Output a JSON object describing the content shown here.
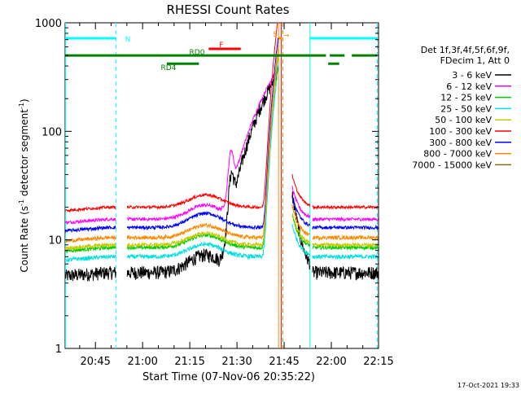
{
  "chart_data": {
    "type": "line",
    "title": "RHESSI Count Rates",
    "xlabel": "Start Time (07-Nov-06 20:35:22)",
    "ylabel_main": "Count Rate (s",
    "ylabel_sup": "-1",
    "ylabel_tail": " detector segment",
    "ylabel_sup2": "-1",
    "ylabel_end": ")",
    "yscale": "log",
    "ylim": [
      1,
      1000
    ],
    "xlim_min": [
      35.37,
      135.0
    ],
    "yticks": [
      {
        "v": 1,
        "label": "1"
      },
      {
        "v": 10,
        "label": "10"
      },
      {
        "v": 100,
        "label": "100"
      },
      {
        "v": 1000,
        "label": "1000"
      }
    ],
    "xticks": [
      {
        "v": 45,
        "label": "20:45"
      },
      {
        "v": 60,
        "label": "21:00"
      },
      {
        "v": 75,
        "label": "21:15"
      },
      {
        "v": 90,
        "label": "21:30"
      },
      {
        "v": 105,
        "label": "21:45"
      },
      {
        "v": 120,
        "label": "22:00"
      },
      {
        "v": 135,
        "label": "22:15"
      }
    ],
    "legend": {
      "header1": "Det 1f,3f,4f,5f,6f,9f,",
      "header2": "FDecim 1, Att 0",
      "placement": "right"
    },
    "series": [
      {
        "name": "3 - 6 keV",
        "color": "#000000",
        "base": 5.0,
        "bump": 1.45,
        "noise": 0.09
      },
      {
        "name": "6 - 12 keV",
        "color": "#ff00ff",
        "base": 15.5,
        "bump": 1.35,
        "noise": 0.035
      },
      {
        "name": "12 - 25 keV",
        "color": "#00cc00",
        "base": 8.5,
        "bump": 1.3,
        "noise": 0.04
      },
      {
        "name": "25 - 50 keV",
        "color": "#00e0e0",
        "base": 7.0,
        "bump": 1.3,
        "noise": 0.045
      },
      {
        "name": "50 - 100 keV",
        "color": "#c8c800",
        "base": 9.0,
        "bump": 1.28,
        "noise": 0.04
      },
      {
        "name": "100 - 300 keV",
        "color": "#ff0000",
        "base": 20.0,
        "bump": 1.3,
        "noise": 0.03
      },
      {
        "name": "300 - 800 keV",
        "color": "#0000ff",
        "base": 13.0,
        "bump": 1.35,
        "noise": 0.035
      },
      {
        "name": "800 - 7000 keV",
        "color": "#ff8800",
        "base": 10.5,
        "bump": 1.3,
        "noise": 0.04
      },
      {
        "name": "7000 - 15000 keV",
        "color": "#8b6914",
        "base": 0,
        "bump": 0,
        "noise": 0
      }
    ],
    "flags": [
      {
        "label": "N",
        "color": "#00ffff",
        "y": 720,
        "segments": [
          [
            35.4,
            51.5
          ],
          [
            113.2,
            134.5
          ]
        ]
      },
      {
        "label": "S",
        "color": "#ff8800",
        "y": 720,
        "segments": [
          [
            103.2,
            104.3
          ]
        ]
      },
      {
        "label": "F",
        "color": "#ff0000",
        "y": 575,
        "segments": [
          [
            81.0,
            91.2
          ]
        ]
      },
      {
        "label": "RD0",
        "color": "#008000",
        "y": 500,
        "segments": [
          [
            35.4,
            118.3
          ],
          [
            119.5,
            124.2
          ],
          [
            126.5,
            134.5
          ]
        ]
      },
      {
        "label": "RD4",
        "color": "#008000",
        "y": 420,
        "segments": [
          [
            67.7,
            77.9
          ],
          [
            119.0,
            122.5
          ]
        ]
      }
    ],
    "vlines": [
      {
        "x": 35.5,
        "color": "#00ffff",
        "style": "solid"
      },
      {
        "x": 51.5,
        "color": "#00ffff",
        "style": "dashed"
      },
      {
        "x": 103.2,
        "color": "#ff8800",
        "style": "solid"
      },
      {
        "x": 104.1,
        "color": "#ff0000",
        "style": "solid"
      },
      {
        "x": 104.6,
        "color": "#ff8800",
        "style": "dashed"
      },
      {
        "x": 113.2,
        "color": "#00ffff",
        "style": "solid"
      },
      {
        "x": 134.6,
        "color": "#00ffff",
        "style": "dashed"
      }
    ],
    "gaps": [
      [
        51.5,
        55.0
      ],
      [
        103.2,
        107.5
      ],
      [
        113.2,
        114.0
      ]
    ],
    "flare": {
      "start": 84,
      "peak": 101.2,
      "end": 103.2
    }
  },
  "footer_date": "17-Oct-2021 19:33"
}
